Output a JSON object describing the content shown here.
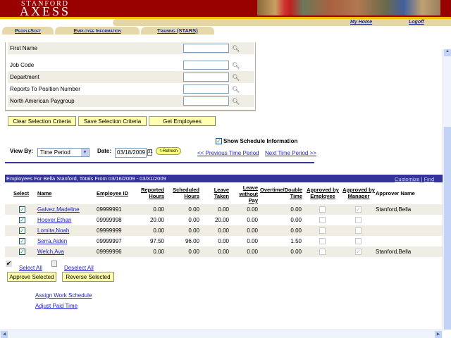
{
  "header": {
    "logo_top": "STANFORD",
    "logo_bottom": "AXESS",
    "my_home": "My Home",
    "logoff": "Logoff"
  },
  "tabs": [
    {
      "label": "PeopleSoft"
    },
    {
      "label": "Employee Information"
    },
    {
      "label": "Training (STARS)"
    }
  ],
  "criteria": {
    "fields": [
      {
        "label": "First Name",
        "value": ""
      },
      {
        "label": "Job Code",
        "value": ""
      },
      {
        "label": "Department",
        "value": ""
      },
      {
        "label": "Reports To Position Number",
        "value": ""
      },
      {
        "label": "North American Paygroup",
        "value": ""
      }
    ],
    "clear": "Clear Selection Criteria",
    "save": "Save Selection Criteria",
    "get": "Get Employees"
  },
  "show_schedule": {
    "label": "Show Schedule Information",
    "checked": true
  },
  "viewby": {
    "label": "View By:",
    "value": "Time Period",
    "date_label": "Date:",
    "date": "03/18/2009",
    "refresh": "Refresh",
    "prev": "<< Previous Time Period",
    "next": "Next Time Period >>"
  },
  "grid": {
    "title": "Employees For Bella Stanford, Totals From 03/16/2009 - 03/31/2009",
    "customize": "Customize",
    "find": "Find",
    "sep": "|",
    "columns": [
      "Select",
      "Name",
      "Employee ID",
      "Reported Hours",
      "Scheduled Hours",
      "Leave Taken",
      "Leave without Pay",
      "Overtime/Double Time",
      "Approved by Employee",
      "Approved by Manager",
      "Approver Name"
    ],
    "rows": [
      {
        "name": "Galvez,Madeline",
        "id": "09999991",
        "reported": "0.00",
        "scheduled": "0.00",
        "leave": "0.00",
        "lwop": "0.00",
        "ot": "0.00",
        "emp": false,
        "mgr": true,
        "approver": "Stanford,Bella"
      },
      {
        "name": "Hoover,Ethan",
        "id": "09999998",
        "reported": "20.00",
        "scheduled": "0.00",
        "leave": "20.00",
        "lwop": "0.00",
        "ot": "0.00",
        "emp": false,
        "mgr": false,
        "approver": ""
      },
      {
        "name": "Lomita,Noah",
        "id": "09999999",
        "reported": "0.00",
        "scheduled": "0.00",
        "leave": "0.00",
        "lwop": "0.00",
        "ot": "0.00",
        "emp": false,
        "mgr": false,
        "approver": ""
      },
      {
        "name": "Serra,Aiden",
        "id": "09999997",
        "reported": "97.50",
        "scheduled": "96.00",
        "leave": "0.00",
        "lwop": "0.00",
        "ot": "1.50",
        "emp": false,
        "mgr": false,
        "approver": ""
      },
      {
        "name": "Welch,Ava",
        "id": "09999996",
        "reported": "0.00",
        "scheduled": "0.00",
        "leave": "0.00",
        "lwop": "0.00",
        "ot": "0.00",
        "emp": false,
        "mgr": true,
        "approver": "Stanford,Bella"
      }
    ]
  },
  "actions": {
    "select_all": "Select All",
    "deselect_all": "Deselect All",
    "approve": "Approve Selected",
    "reverse": "Reverse Selected",
    "assign": "Assign Work Schedule",
    "adjust": "Adjust Paid Time"
  }
}
